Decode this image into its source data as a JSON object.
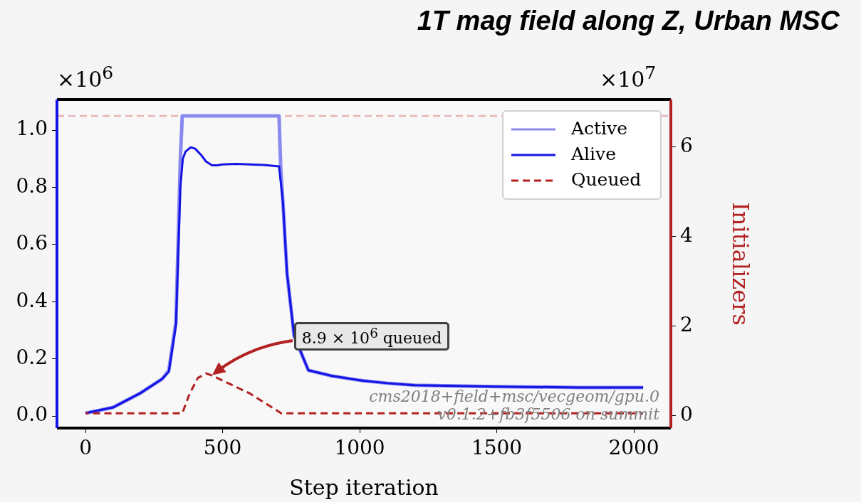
{
  "chart_data": {
    "type": "line",
    "title": "1T mag field along Z, Urban MSC",
    "xlabel": "Step iteration",
    "y2label": "Initializers",
    "xlim": [
      -104,
      2135
    ],
    "xticks": [
      0,
      500,
      1000,
      1500,
      2000
    ],
    "ylim": [
      -0.042,
      1.107
    ],
    "yticks": [
      {
        "value": 0,
        "label": "0.0"
      },
      0.2,
      0.4,
      0.6,
      0.8,
      {
        "value": 1,
        "label": "1.0"
      }
    ],
    "y2lim": [
      -0.27,
      7.06
    ],
    "y2ticks": [
      0,
      2,
      4,
      6
    ],
    "legend": "top right",
    "line_style": "solid",
    "marker": "none",
    "ref_lines": [
      {
        "axis": "y",
        "value": 1.05,
        "color": "#e8b4b4",
        "line_style": "dashed"
      }
    ],
    "annotations": [
      "×10$^{6}$",
      "×10$^{7}$",
      "8.9 × 10$^{6}$ queued",
      "cms2018+field+msc/vecgeom/gpu.0",
      "v0.1.2+fb3f5506 on summit"
    ],
    "series": [
      {
        "name": "Active",
        "color": "#8a8aee",
        "x": [
          0,
          100,
          200,
          280,
          304,
          330,
          346,
          353,
          706,
          712,
          720,
          735,
          761,
          813,
          900,
          1000,
          1100,
          1200,
          1500,
          1800,
          2034
        ],
        "values": [
          0.01,
          0.03,
          0.08,
          0.13,
          0.16,
          0.33,
          0.9,
          1.05,
          1.05,
          0.87,
          0.75,
          0.5,
          0.28,
          0.16,
          0.14,
          0.125,
          0.115,
          0.108,
          0.103,
          0.1,
          0.1
        ]
      },
      {
        "name": "Alive",
        "color": "#1414e6",
        "x": [
          0,
          100,
          200,
          280,
          304,
          330,
          346,
          355,
          365,
          384,
          400,
          420,
          440,
          462,
          480,
          500,
          550,
          600,
          650,
          706,
          720,
          735,
          761,
          813,
          900,
          1000,
          1100,
          1200,
          1500,
          1800,
          2034
        ],
        "values": [
          0.01,
          0.03,
          0.08,
          0.13,
          0.155,
          0.32,
          0.8,
          0.9,
          0.925,
          0.94,
          0.935,
          0.915,
          0.89,
          0.877,
          0.877,
          0.88,
          0.882,
          0.88,
          0.878,
          0.873,
          0.75,
          0.5,
          0.28,
          0.16,
          0.14,
          0.125,
          0.115,
          0.108,
          0.103,
          0.1,
          0.1
        ]
      },
      {
        "name": "Queued",
        "color": "#b22222",
        "axis": "y2",
        "line_style": "dashed",
        "x": [
          0,
          353,
          380,
          410,
          441,
          470,
          500,
          600,
          714,
          1000,
          1500,
          2034
        ],
        "values": [
          0.06,
          0.06,
          0.5,
          0.85,
          0.95,
          0.88,
          0.79,
          0.5,
          0.06,
          0.06,
          0.06,
          0.06
        ]
      }
    ]
  }
}
